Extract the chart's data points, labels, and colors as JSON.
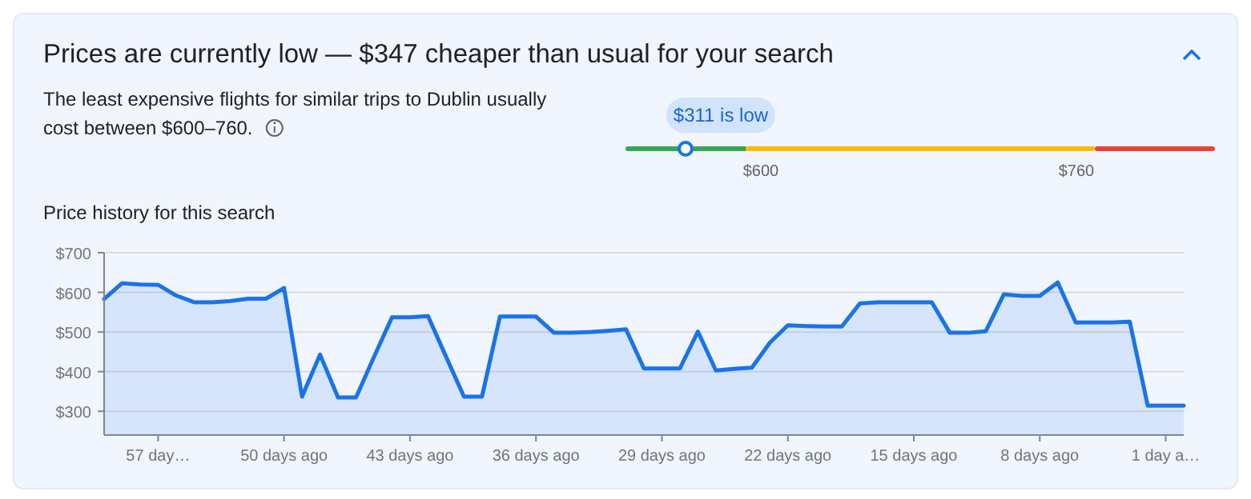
{
  "chart_data": [
    {
      "type": "other",
      "title": "Prices are currently low — $347 cheaper than usual for your search",
      "subtitle": "The least expensive flights for similar trips to Dublin usually cost between $600–760.",
      "annotations": [
        "$311 is low",
        "$600",
        "$760"
      ]
    },
    {
      "type": "area",
      "title": "Price history for this search",
      "x": [
        60,
        59,
        58,
        57,
        56,
        55,
        54,
        53,
        52,
        51,
        50,
        49,
        48,
        47,
        46,
        45,
        44,
        43,
        42,
        41,
        40,
        39,
        38,
        37,
        36,
        35,
        34,
        33,
        32,
        31,
        30,
        29,
        28,
        27,
        26,
        25,
        24,
        23,
        22,
        21,
        20,
        19,
        18,
        17,
        16,
        15,
        14,
        13,
        12,
        11,
        10,
        9,
        8,
        7,
        6,
        5,
        4,
        3,
        2,
        1,
        0
      ],
      "series": [
        {
          "color": "#1a73e8",
          "values": [
            583,
            623,
            620,
            619,
            592,
            575,
            575,
            578,
            584,
            584,
            611,
            337,
            443,
            335,
            335,
            437,
            537,
            537,
            540,
            438,
            337,
            337,
            539,
            539,
            539,
            498,
            498,
            500,
            503,
            507,
            408,
            408,
            408,
            501,
            403,
            407,
            410,
            473,
            517,
            515,
            514,
            514,
            572,
            575,
            575,
            575,
            575,
            498,
            498,
            502,
            595,
            591,
            591,
            625,
            524,
            524,
            524,
            526,
            314,
            314,
            314
          ]
        }
      ],
      "xlim": [
        60,
        0
      ],
      "xticks": [
        {
          "value": 57,
          "label": "57 day…"
        },
        {
          "value": 50,
          "label": "50 days ago"
        },
        {
          "value": 43,
          "label": "43 days ago"
        },
        {
          "value": 36,
          "label": "36 days ago"
        },
        {
          "value": 29,
          "label": "29 days ago"
        },
        {
          "value": 22,
          "label": "22 days ago"
        },
        {
          "value": 15,
          "label": "15 days ago"
        },
        {
          "value": 8,
          "label": "8 days ago"
        },
        {
          "value": 1,
          "label": "1 day a…"
        }
      ],
      "ylim": [
        240,
        700
      ],
      "yticks": [
        {
          "value": 300,
          "label": "$300"
        },
        {
          "value": 400,
          "label": "$400"
        },
        {
          "value": 500,
          "label": "$500"
        },
        {
          "value": 600,
          "label": "$600"
        },
        {
          "value": 700,
          "label": "$700"
        }
      ],
      "grid": "y"
    }
  ]
}
